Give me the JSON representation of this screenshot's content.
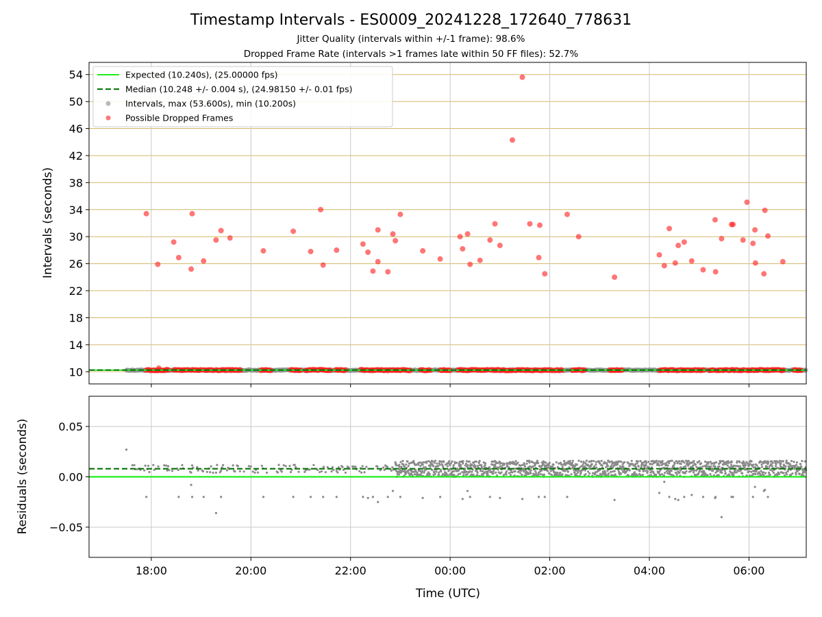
{
  "chart_data": {
    "title": "Timestamp Intervals - ES0009_20241228_172640_778631",
    "subtitle1": "Jitter Quality (intervals within +/-1 frame): 98.6%",
    "subtitle2": "Dropped Frame Rate (intervals >1 frames late within 50 FF files): 52.7%",
    "colors": {
      "expected": "#1aee1a",
      "median": "#117711",
      "intervals": "#8a8a8a",
      "dropped": "#ff1a1a",
      "hgrid_top": "#d2b86a",
      "grid": "#c8c8c8"
    },
    "xaxis": {
      "label": "Time (UTC)",
      "range_hours": [
        16.75,
        31.15
      ],
      "ticks": [
        {
          "h": 18,
          "label": "18:00"
        },
        {
          "h": 20,
          "label": "20:00"
        },
        {
          "h": 22,
          "label": "22:00"
        },
        {
          "h": 24,
          "label": "00:00"
        },
        {
          "h": 26,
          "label": "02:00"
        },
        {
          "h": 28,
          "label": "04:00"
        },
        {
          "h": 30,
          "label": "06:00"
        }
      ]
    },
    "top": {
      "type": "scatter",
      "ylabel": "Intervals (seconds)",
      "ylim": [
        8.2,
        55.8
      ],
      "yticks": [
        10,
        14,
        18,
        22,
        26,
        30,
        34,
        38,
        42,
        46,
        50,
        54
      ],
      "expected": 10.24,
      "median": 10.248,
      "legend": {
        "placement": "top-left",
        "entries": [
          "Expected (10.240s), (25.00000 fps)",
          "Median (10.248 +/- 0.004 s), (24.98150 +/- 0.01 fps)",
          "Intervals, max (53.600s), min (10.200s)",
          "Possible Dropped Frames"
        ]
      },
      "dropped_frames": [
        [
          17.9,
          33.4
        ],
        [
          18.13,
          25.9
        ],
        [
          18.45,
          29.2
        ],
        [
          18.55,
          26.9
        ],
        [
          18.8,
          25.2
        ],
        [
          18.82,
          33.4
        ],
        [
          19.05,
          26.4
        ],
        [
          19.3,
          29.5
        ],
        [
          19.4,
          30.9
        ],
        [
          19.58,
          29.8
        ],
        [
          20.25,
          27.9
        ],
        [
          20.85,
          30.8
        ],
        [
          21.2,
          27.8
        ],
        [
          21.4,
          34.0
        ],
        [
          21.45,
          25.8
        ],
        [
          21.72,
          28.0
        ],
        [
          22.25,
          28.9
        ],
        [
          22.35,
          27.7
        ],
        [
          22.45,
          24.9
        ],
        [
          22.55,
          26.3
        ],
        [
          22.55,
          31.0
        ],
        [
          22.75,
          24.8
        ],
        [
          22.85,
          30.4
        ],
        [
          22.9,
          29.4
        ],
        [
          23.0,
          33.3
        ],
        [
          23.45,
          27.9
        ],
        [
          23.8,
          26.7
        ],
        [
          24.2,
          30.0
        ],
        [
          24.25,
          28.2
        ],
        [
          24.35,
          30.4
        ],
        [
          24.4,
          25.9
        ],
        [
          24.6,
          26.5
        ],
        [
          24.8,
          29.5
        ],
        [
          24.9,
          31.9
        ],
        [
          25.0,
          28.7
        ],
        [
          25.25,
          44.3
        ],
        [
          25.45,
          53.6
        ],
        [
          25.6,
          31.9
        ],
        [
          25.78,
          26.9
        ],
        [
          25.8,
          31.7
        ],
        [
          25.9,
          24.5
        ],
        [
          26.35,
          33.3
        ],
        [
          26.58,
          30.0
        ],
        [
          27.3,
          24.0
        ],
        [
          28.2,
          27.3
        ],
        [
          28.3,
          25.7
        ],
        [
          28.4,
          31.2
        ],
        [
          28.52,
          26.1
        ],
        [
          28.58,
          28.7
        ],
        [
          28.7,
          29.2
        ],
        [
          28.85,
          26.4
        ],
        [
          29.08,
          25.1
        ],
        [
          29.32,
          32.5
        ],
        [
          29.33,
          24.8
        ],
        [
          29.45,
          29.7
        ],
        [
          29.65,
          31.8
        ],
        [
          29.68,
          31.8
        ],
        [
          29.88,
          29.5
        ],
        [
          29.96,
          35.1
        ],
        [
          30.08,
          29.0
        ],
        [
          30.12,
          31.0
        ],
        [
          30.13,
          26.1
        ],
        [
          30.3,
          24.5
        ],
        [
          30.32,
          33.9
        ],
        [
          30.38,
          30.1
        ],
        [
          30.68,
          26.3
        ]
      ]
    },
    "bottom": {
      "type": "scatter",
      "ylabel": "Residuals (seconds)",
      "ylim": [
        -0.08,
        0.08
      ],
      "yticks": [
        {
          "v": 0.05,
          "label": "0.05"
        },
        {
          "v": 0.0,
          "label": "0.00"
        },
        {
          "v": -0.05,
          "label": "−0.05"
        }
      ],
      "expected_residual": 0.0,
      "median_residual": 0.008,
      "outliers": [
        [
          17.5,
          0.027
        ],
        [
          17.9,
          -0.02
        ],
        [
          18.55,
          -0.02
        ],
        [
          18.8,
          -0.008
        ],
        [
          18.82,
          -0.02
        ],
        [
          19.05,
          -0.02
        ],
        [
          19.3,
          -0.036
        ],
        [
          19.4,
          -0.02
        ],
        [
          20.25,
          -0.02
        ],
        [
          20.85,
          -0.02
        ],
        [
          21.2,
          -0.02
        ],
        [
          21.45,
          -0.02
        ],
        [
          21.72,
          -0.02
        ],
        [
          22.25,
          -0.02
        ],
        [
          22.35,
          -0.021
        ],
        [
          22.45,
          -0.02
        ],
        [
          22.55,
          -0.025
        ],
        [
          22.75,
          -0.02
        ],
        [
          22.85,
          -0.014
        ],
        [
          23.0,
          -0.02
        ],
        [
          23.45,
          -0.021
        ],
        [
          23.8,
          -0.02
        ],
        [
          24.25,
          -0.022
        ],
        [
          24.35,
          -0.014
        ],
        [
          24.4,
          -0.02
        ],
        [
          24.8,
          -0.02
        ],
        [
          25.0,
          -0.021
        ],
        [
          25.45,
          -0.022
        ],
        [
          25.78,
          -0.02
        ],
        [
          25.9,
          -0.02
        ],
        [
          26.35,
          -0.02
        ],
        [
          27.3,
          -0.023
        ],
        [
          28.2,
          -0.016
        ],
        [
          28.3,
          -0.005
        ],
        [
          28.4,
          -0.02
        ],
        [
          28.52,
          -0.022
        ],
        [
          28.58,
          -0.023
        ],
        [
          28.7,
          -0.02
        ],
        [
          28.85,
          -0.018
        ],
        [
          29.08,
          -0.02
        ],
        [
          29.32,
          -0.021
        ],
        [
          29.33,
          -0.02
        ],
        [
          29.45,
          -0.04
        ],
        [
          29.65,
          -0.02
        ],
        [
          29.68,
          -0.02
        ],
        [
          30.08,
          -0.02
        ],
        [
          30.12,
          -0.01
        ],
        [
          30.3,
          -0.014
        ],
        [
          30.32,
          -0.013
        ],
        [
          30.38,
          -0.02
        ]
      ]
    }
  }
}
